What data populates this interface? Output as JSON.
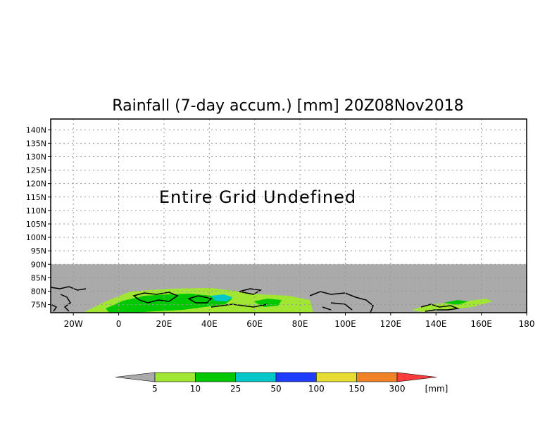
{
  "title": "Rainfall (7-day accum.) [mm] 20Z08Nov2018",
  "message": "Entire Grid Undefined",
  "colors": {
    "undefined": "#aaaaaa",
    "grid": "#999999",
    "coast": "#000000"
  },
  "map": {
    "lon_range": [
      -30,
      180
    ],
    "lat_range": [
      72,
      144
    ],
    "undefined_region_lat_max": 90,
    "lat_ticks": [
      {
        "value": 140,
        "label": "140N"
      },
      {
        "value": 135,
        "label": "135N"
      },
      {
        "value": 130,
        "label": "130N"
      },
      {
        "value": 125,
        "label": "125N"
      },
      {
        "value": 120,
        "label": "120N"
      },
      {
        "value": 115,
        "label": "115N"
      },
      {
        "value": 110,
        "label": "110N"
      },
      {
        "value": 105,
        "label": "105N"
      },
      {
        "value": 100,
        "label": "100N"
      },
      {
        "value": 95,
        "label": "95N"
      },
      {
        "value": 90,
        "label": "90N"
      },
      {
        "value": 85,
        "label": "85N"
      },
      {
        "value": 80,
        "label": "80N"
      },
      {
        "value": 75,
        "label": "75N"
      }
    ],
    "lon_ticks": [
      {
        "value": -20,
        "label": "20W"
      },
      {
        "value": 0,
        "label": "0"
      },
      {
        "value": 20,
        "label": "20E"
      },
      {
        "value": 40,
        "label": "40E"
      },
      {
        "value": 60,
        "label": "60E"
      },
      {
        "value": 80,
        "label": "80E"
      },
      {
        "value": 100,
        "label": "100E"
      },
      {
        "value": 120,
        "label": "120E"
      },
      {
        "value": 140,
        "label": "140E"
      },
      {
        "value": 160,
        "label": "160E"
      },
      {
        "value": 180,
        "label": "180"
      }
    ]
  },
  "legend": {
    "unit": "[mm]",
    "below_color": "#aaaaaa",
    "bins": [
      {
        "color": "#a0e632",
        "label": "5"
      },
      {
        "color": "#00c800",
        "label": "10"
      },
      {
        "color": "#00c8c8",
        "label": "25"
      },
      {
        "color": "#1e3cff",
        "label": "50"
      },
      {
        "color": "#e6dc32",
        "label": "100"
      },
      {
        "color": "#f08228",
        "label": "150"
      },
      {
        "color": "#fa3c3c",
        "label": "300"
      }
    ]
  }
}
